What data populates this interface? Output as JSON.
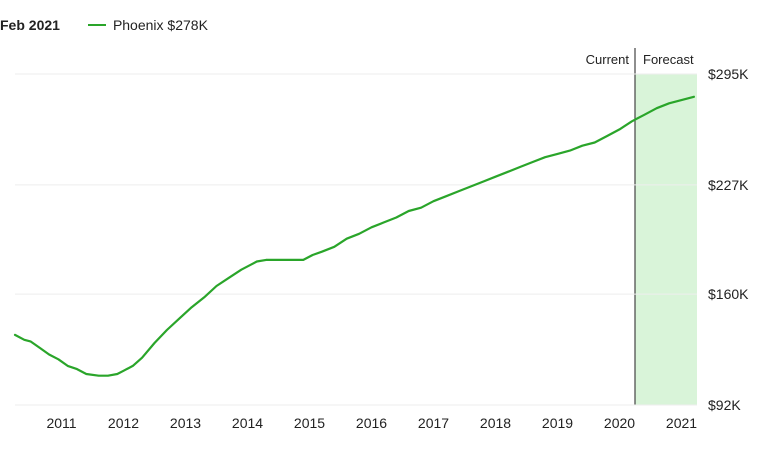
{
  "header": {
    "date": "Feb 2021",
    "legend_label": "Phoenix $278K"
  },
  "colors": {
    "line": "#2aa52a",
    "forecast_fill": "#d9f4d9",
    "divider": "#444444",
    "grid": "#eeeeee"
  },
  "chart_data": {
    "type": "line",
    "title": "",
    "xlabel": "",
    "ylabel": "",
    "x_ticks": [
      "2011",
      "2012",
      "2013",
      "2014",
      "2015",
      "2016",
      "2017",
      "2018",
      "2019",
      "2020",
      "2021"
    ],
    "y_ticks": [
      "$92K",
      "$160K",
      "$227K",
      "$295K"
    ],
    "xlim": [
      2010.25,
      2021.25
    ],
    "ylim": [
      92,
      295
    ],
    "grid": "horizontal",
    "legend_placement": "top-left",
    "regions": [
      {
        "label": "Current",
        "end": 2020.25
      },
      {
        "label": "Forecast",
        "start": 2020.25,
        "end": 2021.25
      }
    ],
    "series": [
      {
        "name": "Phoenix $278K",
        "x": [
          2010.25,
          2010.4,
          2010.5,
          2010.65,
          2010.8,
          2010.95,
          2011.1,
          2011.25,
          2011.4,
          2011.6,
          2011.75,
          2011.9,
          2012.0,
          2012.15,
          2012.3,
          2012.5,
          2012.7,
          2012.9,
          2013.1,
          2013.3,
          2013.5,
          2013.7,
          2013.9,
          2014.05,
          2014.15,
          2014.3,
          2014.5,
          2014.7,
          2014.9,
          2015.05,
          2015.2,
          2015.4,
          2015.6,
          2015.8,
          2016.0,
          2016.2,
          2016.4,
          2016.6,
          2016.8,
          2017.0,
          2017.2,
          2017.4,
          2017.6,
          2017.8,
          2018.0,
          2018.2,
          2018.4,
          2018.6,
          2018.8,
          2019.0,
          2019.2,
          2019.4,
          2019.6,
          2019.8,
          2020.0,
          2020.2,
          2020.4,
          2020.6,
          2020.8,
          2021.0,
          2021.2
        ],
        "values": [
          135,
          132,
          131,
          127,
          123,
          120,
          116,
          114,
          111,
          110,
          110,
          111,
          113,
          116,
          121,
          130,
          138,
          145,
          152,
          158,
          165,
          170,
          175,
          178,
          180,
          181,
          181,
          181,
          181,
          184,
          186,
          189,
          194,
          197,
          201,
          204,
          207,
          211,
          213,
          217,
          220,
          223,
          226,
          229,
          232,
          235,
          238,
          241,
          244,
          246,
          248,
          251,
          253,
          257,
          261,
          266,
          270,
          274,
          277,
          279,
          281
        ]
      }
    ]
  }
}
